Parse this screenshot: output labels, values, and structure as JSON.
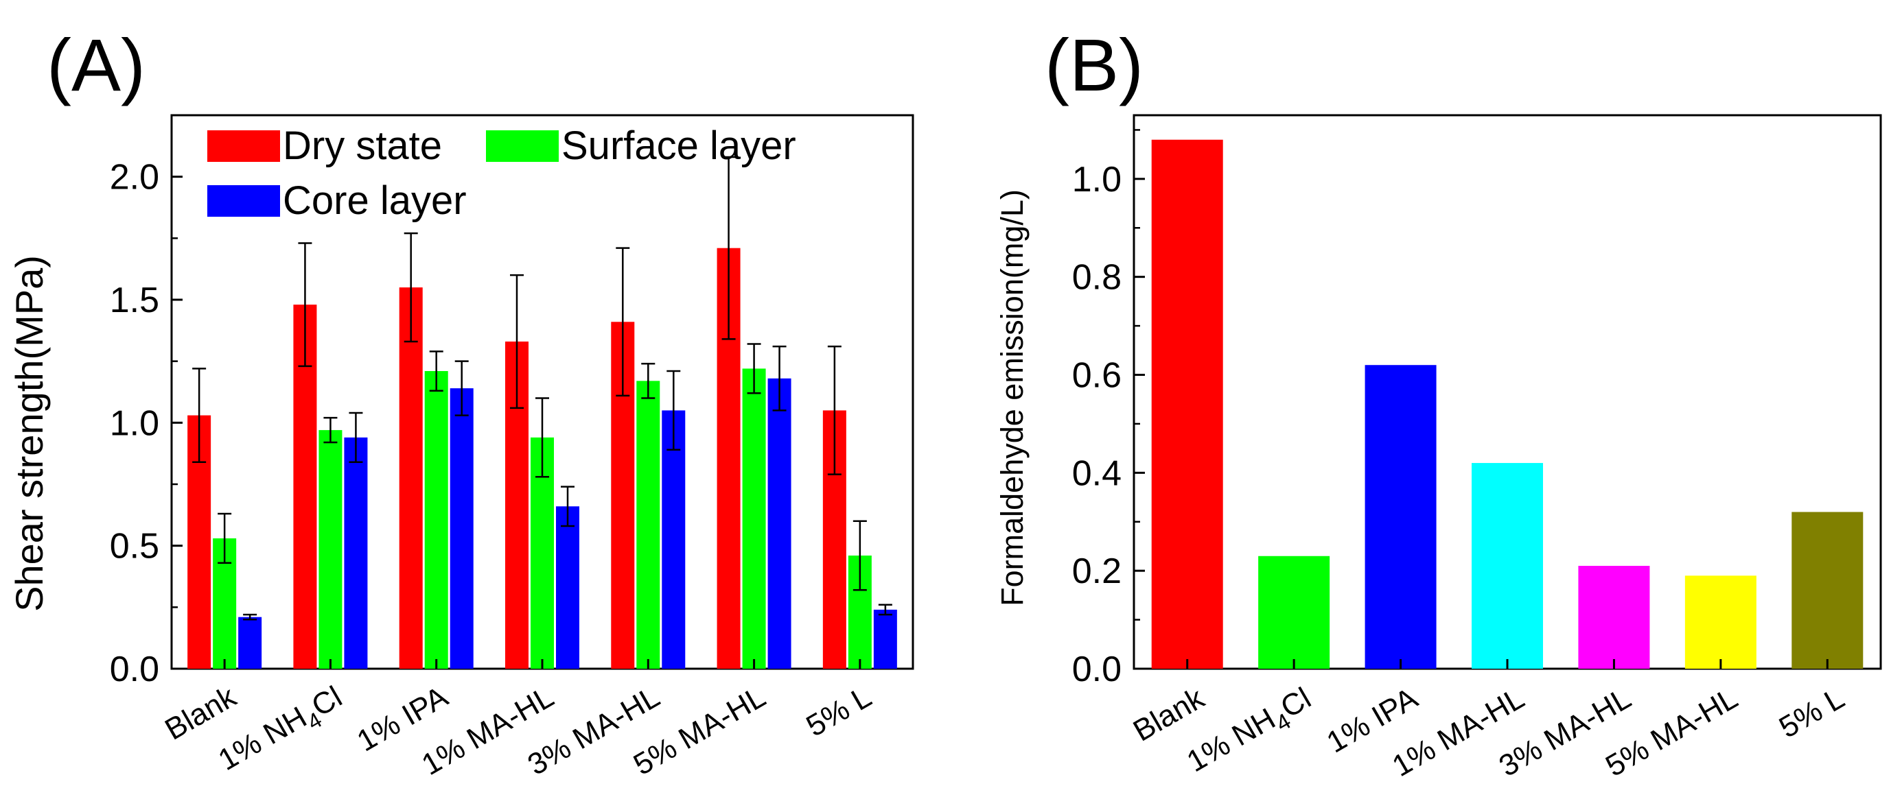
{
  "chart_data": [
    {
      "panel_label": "(A)",
      "type": "bar",
      "title": "",
      "xlabel": "",
      "ylabel": "Shear strength(MPa)",
      "ylim": [
        0,
        2.25
      ],
      "yticks": [
        "0.0",
        "0.5",
        "1.0",
        "1.5",
        "2.0"
      ],
      "yticks_values": [
        0,
        0.5,
        1.0,
        1.5,
        2.0
      ],
      "categories": [
        {
          "main": "Blank"
        },
        {
          "main": "1% NH",
          "sub": "4",
          "tail": "Cl"
        },
        {
          "main": "1% IPA"
        },
        {
          "main": "1% MA-HL"
        },
        {
          "main": "3% MA-HL"
        },
        {
          "main": "5% MA-HL"
        },
        {
          "main": "5% L"
        }
      ],
      "legend_position": "top-left",
      "series": [
        {
          "name": "Dry state",
          "color": "#ff0000",
          "values": [
            1.03,
            1.48,
            1.55,
            1.33,
            1.41,
            1.71,
            1.05
          ],
          "errors": [
            0.19,
            0.25,
            0.22,
            0.27,
            0.3,
            0.37,
            0.26
          ]
        },
        {
          "name": "Surface layer",
          "color": "#00ff00",
          "values": [
            0.53,
            0.97,
            1.21,
            0.94,
            1.17,
            1.22,
            0.46
          ],
          "errors": [
            0.1,
            0.05,
            0.08,
            0.16,
            0.07,
            0.1,
            0.14
          ]
        },
        {
          "name": "Core layer",
          "color": "#0000ff",
          "values": [
            0.21,
            0.94,
            1.14,
            0.66,
            1.05,
            1.18,
            0.24
          ],
          "errors": [
            0.01,
            0.1,
            0.11,
            0.08,
            0.16,
            0.13,
            0.02
          ]
        }
      ]
    },
    {
      "panel_label": "(B)",
      "type": "bar",
      "title": "",
      "xlabel": "",
      "ylabel": "Formaldehyde emission(mg/L)",
      "ylim": [
        0,
        1.13
      ],
      "yticks": [
        "0.0",
        "0.2",
        "0.4",
        "0.6",
        "0.8",
        "1.0"
      ],
      "yticks_values": [
        0,
        0.2,
        0.4,
        0.6,
        0.8,
        1.0
      ],
      "categories": [
        {
          "main": "Blank"
        },
        {
          "main": "1% NH",
          "sub": "4",
          "tail": "Cl"
        },
        {
          "main": "1% IPA"
        },
        {
          "main": "1% MA-HL"
        },
        {
          "main": "3% MA-HL"
        },
        {
          "main": "5% MA-HL"
        },
        {
          "main": "5% L"
        }
      ],
      "values": [
        1.08,
        0.23,
        0.62,
        0.42,
        0.21,
        0.19,
        0.32
      ],
      "colors": [
        "#ff0000",
        "#00ff00",
        "#0000ff",
        "#00ffff",
        "#ff00ff",
        "#ffff00",
        "#808000"
      ]
    }
  ]
}
